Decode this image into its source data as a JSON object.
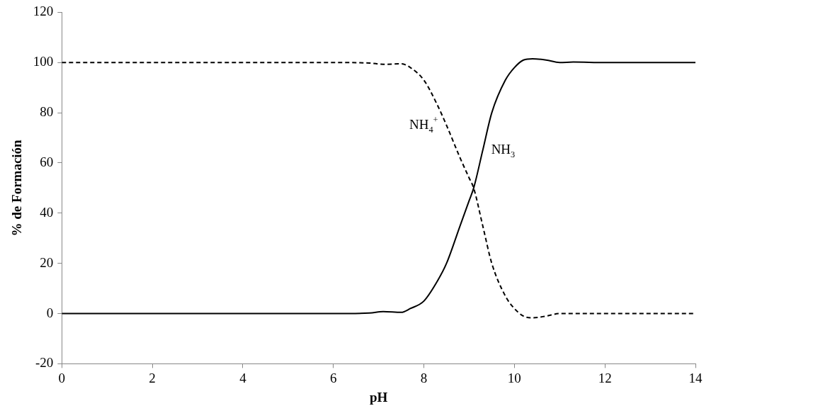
{
  "chart_data": {
    "type": "line",
    "xlabel": "pH",
    "ylabel": "% de Formación",
    "xlim": [
      0,
      14
    ],
    "xticks": [
      0,
      2,
      4,
      6,
      8,
      10,
      12,
      14
    ],
    "ylim": [
      -20,
      120
    ],
    "yticks": [
      -20,
      0,
      20,
      40,
      60,
      80,
      100,
      120
    ],
    "grid": false,
    "legend": false,
    "marker": "none",
    "series": [
      {
        "name": "NH$_{4}$$^{+}$",
        "color": "#000000",
        "line_style": "dashed",
        "x": [
          0,
          2,
          4,
          6,
          6.8,
          7.1,
          7.5,
          7.7,
          8,
          8.3,
          8.5,
          8.8,
          9,
          9.1,
          9.3,
          9.5,
          9.8,
          10,
          10.2,
          10.4,
          10.7,
          11,
          12,
          14
        ],
        "values": [
          100,
          100,
          100,
          100,
          99.8,
          99.3,
          99.5,
          98,
          93,
          83,
          75,
          62,
          54,
          50,
          35,
          20,
          7,
          2,
          -1,
          -1.7,
          -1,
          0,
          0,
          0
        ]
      },
      {
        "name": "NH$_{3}$",
        "color": "#000000",
        "line_style": "solid",
        "x": [
          0,
          2,
          4,
          6,
          6.8,
          7.1,
          7.5,
          7.7,
          8,
          8.3,
          8.5,
          8.8,
          9,
          9.1,
          9.3,
          9.5,
          9.8,
          10,
          10.2,
          10.4,
          10.7,
          11,
          11.3,
          12,
          14
        ],
        "values": [
          0,
          0,
          0,
          0,
          0.2,
          0.8,
          0.5,
          2,
          5,
          13,
          20,
          35,
          45,
          50,
          65,
          80,
          93,
          98,
          101,
          101.5,
          101,
          100,
          100.2,
          100,
          100
        ]
      }
    ]
  }
}
